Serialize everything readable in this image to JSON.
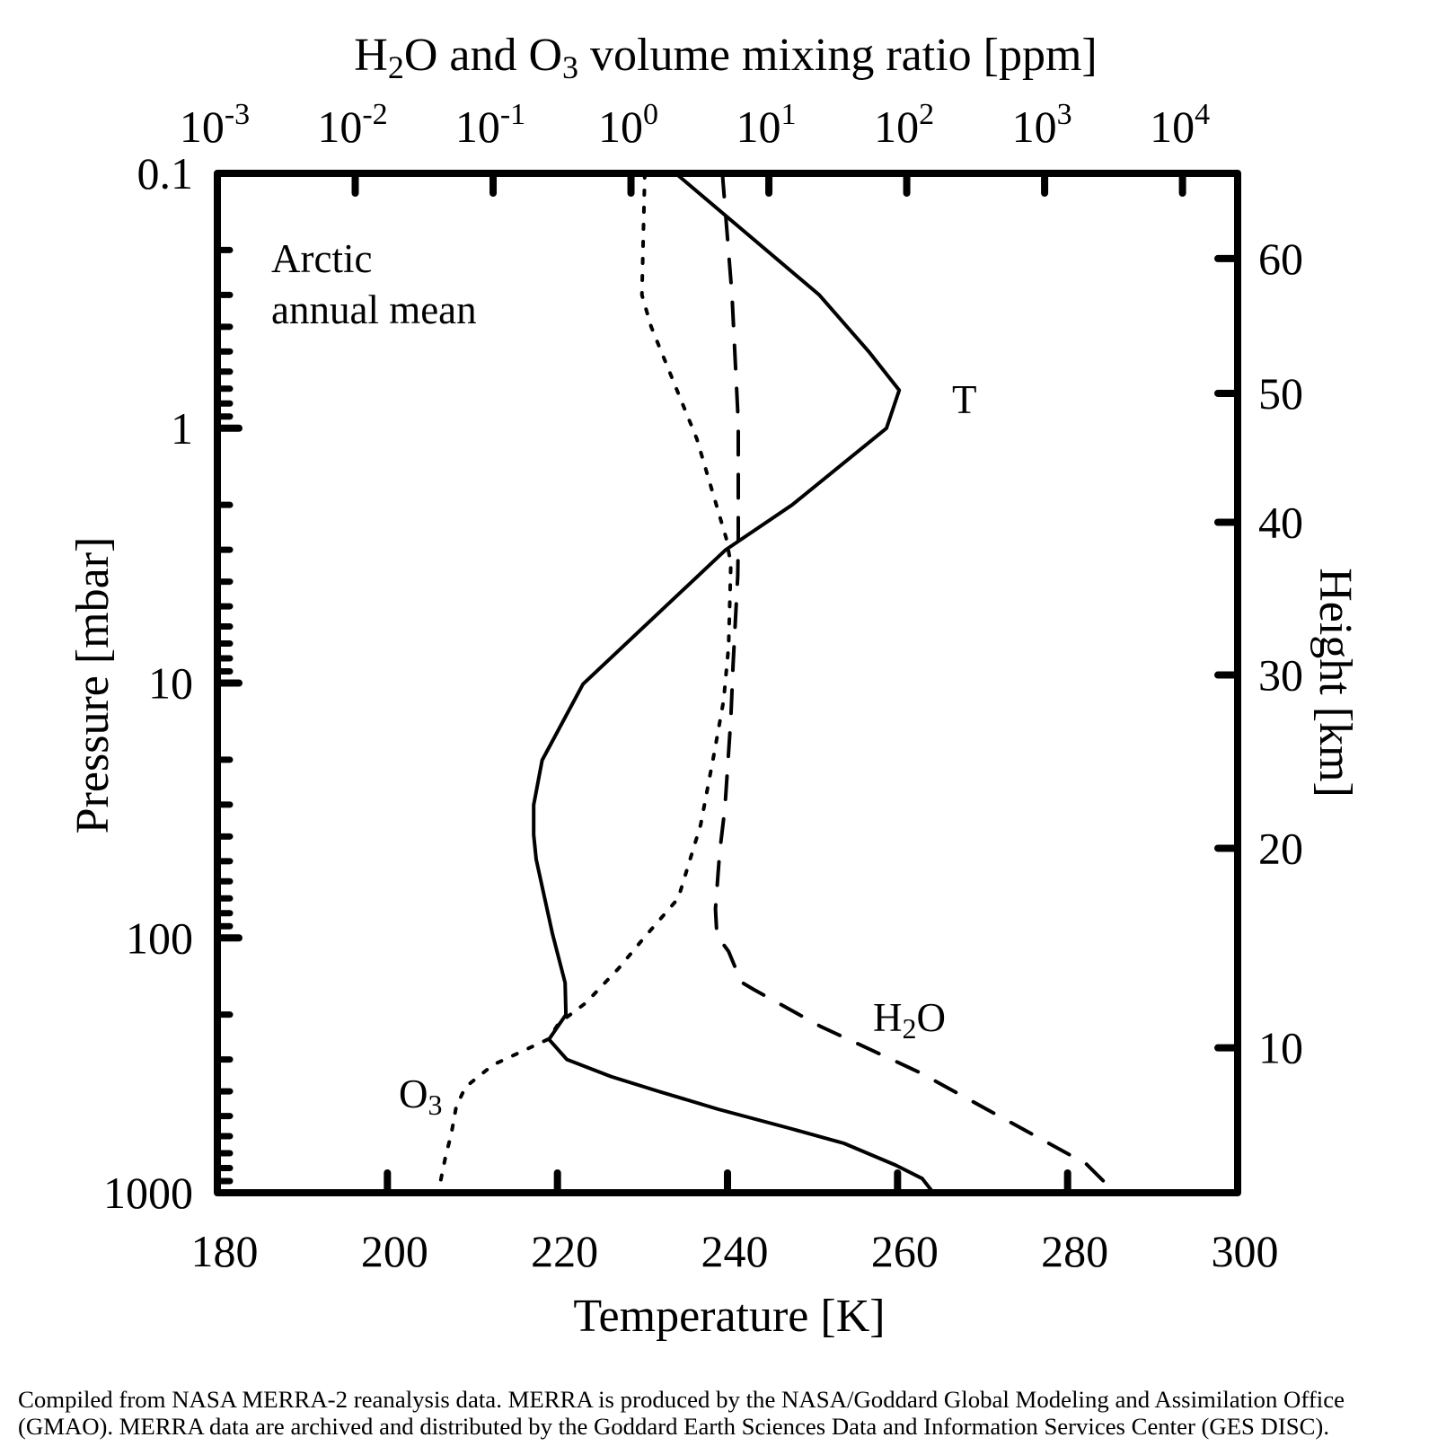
{
  "chart_data": {
    "type": "line",
    "title": "H2O and O3 volume mixing ratio [ppm]",
    "title_parts": [
      {
        "text": "H",
        "sub": false
      },
      {
        "text": "2",
        "sub": true
      },
      {
        "text": "O and O",
        "sub": false
      },
      {
        "text": "3",
        "sub": true
      },
      {
        "text": " volume mixing ratio [ppm]",
        "sub": false
      }
    ],
    "xlabel": "Temperature [K]",
    "ylabel": "Pressure [mbar]",
    "y2label": "Height [km]",
    "annotation": [
      "Arctic",
      "annual mean"
    ],
    "caption": [
      "Compiled from NASA MERRA-2 reanalysis data.  MERRA is produced by the NASA/Goddard Global Modeling and Assimilation Office",
      "(GMAO).  MERRA data are archived and distributed by the Goddard Earth Sciences Data and Information Services Center (GES DISC)."
    ],
    "axes": {
      "x_bottom": {
        "label": "Temperature [K]",
        "range": [
          180,
          300
        ],
        "ticks": [
          180,
          200,
          220,
          240,
          260,
          280,
          300
        ],
        "tick_labels": [
          "180",
          "200",
          "220",
          "240",
          "260",
          "280",
          "300"
        ],
        "scale": "linear"
      },
      "x_top": {
        "label": "H2O and O3 volume mixing ratio [ppm]",
        "scale": "log",
        "range_log10": [
          -3,
          4.4
        ],
        "ticks_log10": [
          -3,
          -2,
          -1,
          0,
          1,
          2,
          3,
          4
        ],
        "tick_base": "10",
        "tick_exponents": [
          "-3",
          "-2",
          "-1",
          "0",
          "1",
          "2",
          "3",
          "4"
        ]
      },
      "y_left": {
        "label": "Pressure [mbar]",
        "scale": "log",
        "inverted": true,
        "range": [
          0.1,
          1000
        ],
        "ticks": [
          0.1,
          1,
          10,
          100,
          1000
        ],
        "tick_labels": [
          "0.1",
          "1",
          "10",
          "100",
          "1000"
        ]
      },
      "y_right": {
        "label": "Height [km]",
        "ticks_km": [
          10,
          20,
          30,
          40,
          50,
          60
        ],
        "tick_labels": [
          "10",
          "20",
          "30",
          "40",
          "50",
          "60"
        ],
        "tick_pressure_mbar": [
          270,
          44.5,
          9.3,
          2.34,
          0.73,
          0.216
        ]
      }
    },
    "grid": false,
    "series": [
      {
        "name": "T",
        "label": "T",
        "axis": "temperature",
        "style": "solid",
        "points": [
          [
            233.9,
            0.1
          ],
          [
            250.8,
            0.3
          ],
          [
            256.6,
            0.5
          ],
          [
            260.2,
            0.71
          ],
          [
            258.7,
            1.0
          ],
          [
            247.6,
            2.0
          ],
          [
            239.8,
            3.0
          ],
          [
            223.0,
            10.1
          ],
          [
            218.2,
            20.1
          ],
          [
            217.2,
            30.1
          ],
          [
            217.2,
            39.4
          ],
          [
            217.5,
            49.2
          ],
          [
            219.4,
            96
          ],
          [
            220.9,
            150
          ],
          [
            221.0,
            200
          ],
          [
            219.0,
            250
          ],
          [
            221.1,
            300
          ],
          [
            226.3,
            350
          ],
          [
            231.9,
            400
          ],
          [
            238.9,
            470
          ],
          [
            247.4,
            560
          ],
          [
            253.7,
            640
          ],
          [
            259.8,
            780
          ],
          [
            262.9,
            880
          ],
          [
            264.2,
            1000
          ]
        ]
      },
      {
        "name": "H2O",
        "label_parts": [
          {
            "text": "H",
            "sub": false
          },
          {
            "text": "2",
            "sub": true
          },
          {
            "text": "O",
            "sub": false
          }
        ],
        "axis": "ppm",
        "style": "dashed",
        "points": [
          [
            4.6,
            0.1
          ],
          [
            5.4,
            0.3
          ],
          [
            6.0,
            0.95
          ],
          [
            6.0,
            2.7
          ],
          [
            5.95,
            3.8
          ],
          [
            5.5,
            8.5
          ],
          [
            5.3,
            13.8
          ],
          [
            4.8,
            31
          ],
          [
            4.4,
            46
          ],
          [
            4.1,
            77
          ],
          [
            4.2,
            98
          ],
          [
            5.1,
            113
          ],
          [
            6.3,
            149
          ],
          [
            7.7,
            159
          ],
          [
            23.9,
            223
          ],
          [
            125,
            338
          ],
          [
            2000,
            770
          ],
          [
            3250,
            1000
          ]
        ]
      },
      {
        "name": "O3",
        "label_parts": [
          {
            "text": "O",
            "sub": false
          },
          {
            "text": "3",
            "sub": true
          }
        ],
        "axis": "ppm",
        "style": "dotted",
        "points": [
          [
            1.26,
            0.1
          ],
          [
            1.2,
            0.3
          ],
          [
            1.4,
            0.4
          ],
          [
            3.0,
            1.1
          ],
          [
            4.9,
            2.7
          ],
          [
            5.3,
            3.4
          ],
          [
            5.1,
            7.2
          ],
          [
            4.7,
            11.7
          ],
          [
            4.0,
            19
          ],
          [
            3.2,
            36
          ],
          [
            2.2,
            70
          ],
          [
            1.24,
            100
          ],
          [
            0.81,
            132
          ],
          [
            0.47,
            180
          ],
          [
            0.3,
            216
          ],
          [
            0.25,
            250
          ],
          [
            0.1,
            315
          ],
          [
            0.063,
            385
          ],
          [
            0.054,
            460
          ],
          [
            0.05,
            580
          ],
          [
            0.045,
            730
          ],
          [
            0.04,
            1000
          ]
        ]
      }
    ]
  }
}
